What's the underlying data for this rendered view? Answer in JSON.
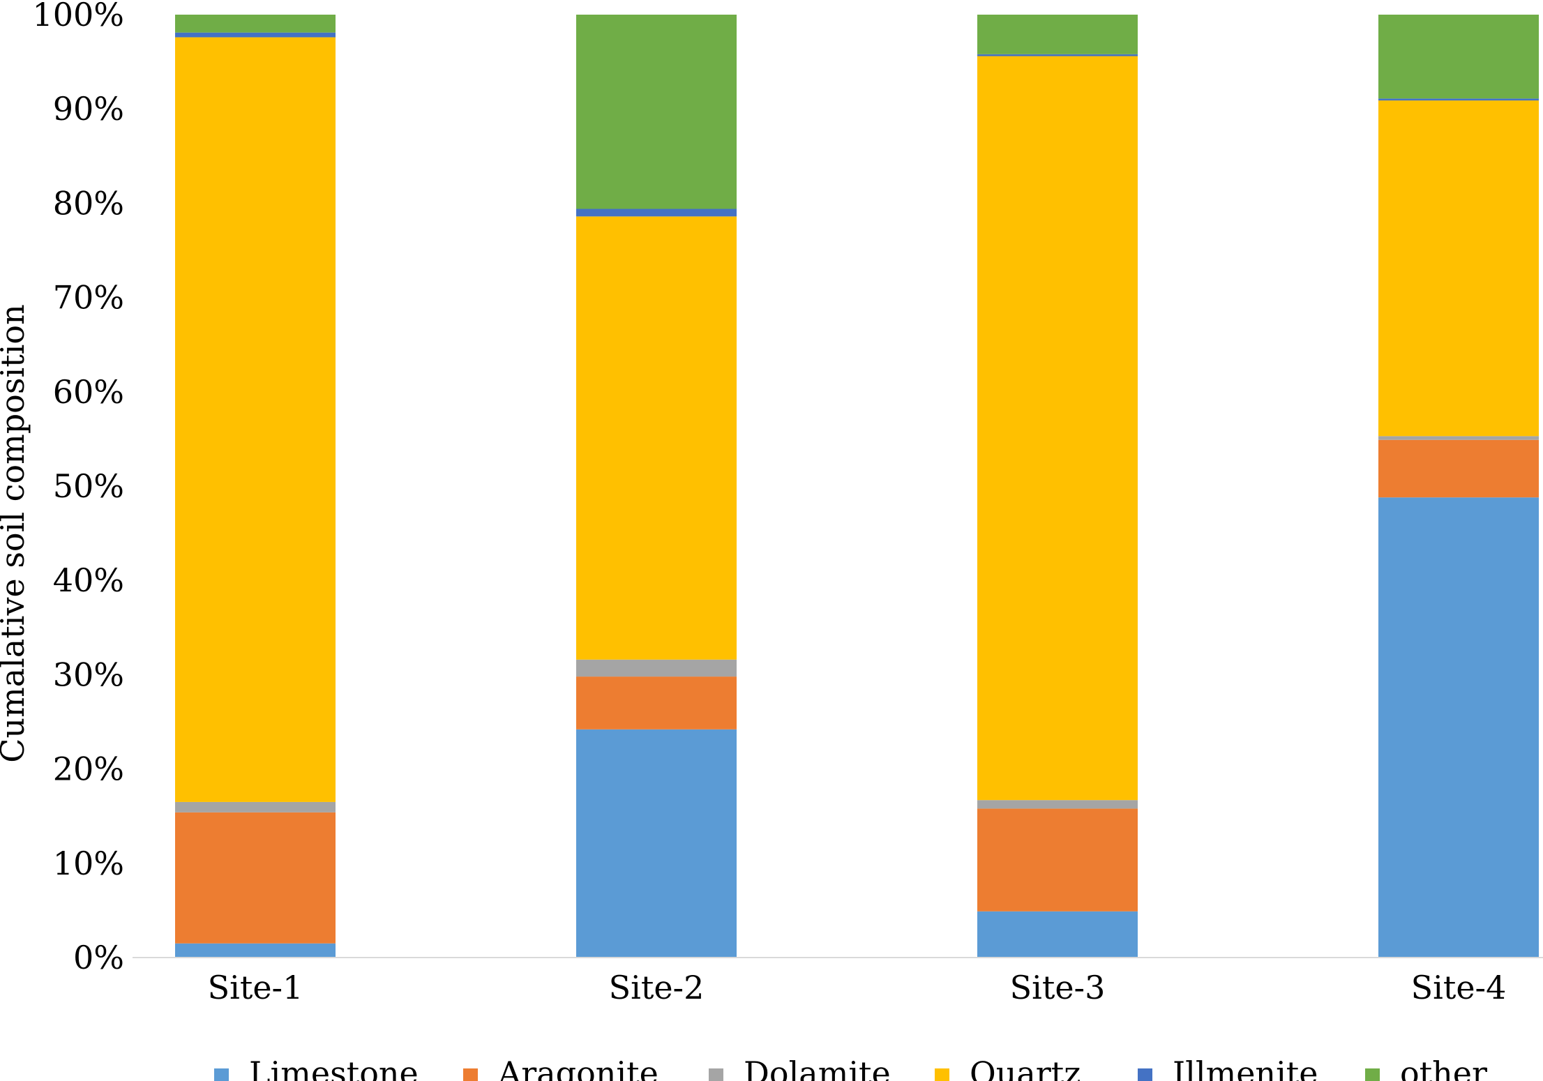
{
  "chart_data": {
    "type": "bar",
    "stacked": true,
    "percent": true,
    "title": "",
    "xlabel": "",
    "ylabel": "Cumalative soil composition",
    "ylim": [
      0,
      100
    ],
    "yticks": [
      "0%",
      "10%",
      "20%",
      "30%",
      "40%",
      "50%",
      "60%",
      "70%",
      "80%",
      "90%",
      "100%"
    ],
    "grid": false,
    "legend_position": "bottom",
    "categories": [
      "Site-1",
      "Site-2",
      "Site-3",
      "Site-4"
    ],
    "series": [
      {
        "name": "Limestone",
        "color": "#5b9bd5",
        "values": [
          1.5,
          24.2,
          4.9,
          48.8
        ]
      },
      {
        "name": "Aragonite",
        "color": "#ed7d31",
        "values": [
          13.9,
          5.6,
          10.9,
          6.1
        ]
      },
      {
        "name": "Dolamite",
        "color": "#a5a5a5",
        "values": [
          1.1,
          1.8,
          0.9,
          0.4
        ]
      },
      {
        "name": "Quartz",
        "color": "#ffc000",
        "values": [
          81.1,
          47.0,
          78.9,
          35.6
        ]
      },
      {
        "name": "Illmenite",
        "color": "#4472c4",
        "values": [
          0.5,
          0.8,
          0.2,
          0.2
        ]
      },
      {
        "name": "other",
        "color": "#70ad47",
        "values": [
          1.9,
          20.6,
          4.2,
          8.9
        ]
      }
    ]
  }
}
